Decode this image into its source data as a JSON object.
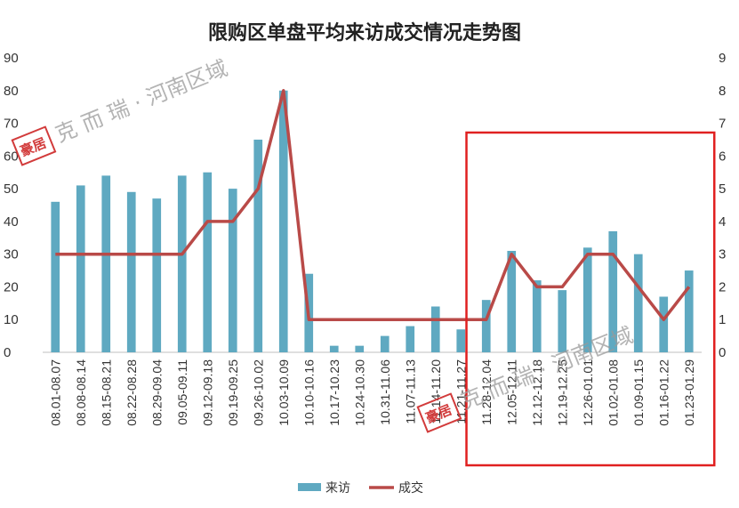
{
  "chart_data": {
    "type": "bar",
    "title": "限购区单盘平均来访成交情况走势图",
    "categories": [
      "08.01-08.07",
      "08.08-08.14",
      "08.15-08.21",
      "08.22-08.28",
      "08.29-09.04",
      "09.05-09.11",
      "09.12-09.18",
      "09.19-09.25",
      "09.26-10.02",
      "10.03-10.09",
      "10.10-10.16",
      "10.17-10.23",
      "10.24-10.30",
      "10.31-11.06",
      "11.07-11.13",
      "11.14-11.20",
      "11.21-11.27",
      "11.28-12.04",
      "12.05-12.11",
      "12.12-12.18",
      "12.19-12.25",
      "12.26-01.01",
      "01.02-01.08",
      "01.09-01.15",
      "01.16-01.22",
      "01.23-01.29"
    ],
    "series": [
      {
        "name": "来访",
        "type": "bar",
        "axis": "left",
        "color": "#5fa9c1",
        "values": [
          46,
          51,
          54,
          49,
          47,
          54,
          55,
          50,
          65,
          80,
          24,
          2,
          2,
          5,
          8,
          14,
          7,
          16,
          31,
          22,
          19,
          32,
          37,
          30,
          17,
          25
        ]
      },
      {
        "name": "成交",
        "type": "line",
        "axis": "right",
        "color": "#b94a48",
        "values": [
          3,
          3,
          3,
          3,
          3,
          3,
          4,
          4,
          5,
          8,
          1,
          1,
          1,
          1,
          1,
          1,
          1,
          1,
          3,
          2,
          2,
          3,
          3,
          2,
          1,
          2
        ]
      }
    ],
    "y_left": {
      "min": 0,
      "max": 90,
      "ticks": [
        0,
        10,
        20,
        30,
        40,
        50,
        60,
        70,
        80,
        90
      ]
    },
    "y_right": {
      "min": 0,
      "max": 9,
      "ticks": [
        0,
        1,
        2,
        3,
        4,
        5,
        6,
        7,
        8,
        9
      ]
    },
    "legend_placement": "bottom-center",
    "grid": false,
    "highlight": {
      "from_category": "11.28-12.04",
      "to_category": "01.23-01.29",
      "color": "#e02020"
    }
  },
  "watermark": {
    "seal": "豪居",
    "text": "克 而 瑞 · 河南区域"
  }
}
